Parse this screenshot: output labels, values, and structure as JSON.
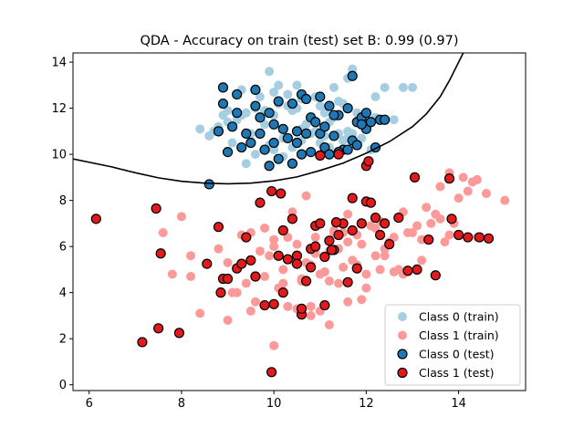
{
  "chart_data": {
    "type": "scatter",
    "title": "QDA - Accuracy on train (test) set B: 0.99 (0.97)",
    "xlabel": "",
    "ylabel": "",
    "xlim": [
      5.65,
      15.45
    ],
    "ylim": [
      -0.25,
      14.4
    ],
    "xticks": [
      6,
      8,
      10,
      12,
      14
    ],
    "yticks": [
      0,
      2,
      4,
      6,
      8,
      10,
      12,
      14
    ],
    "grid": false,
    "legend_position": "lower-right",
    "colors": {
      "class0_train": "#a6cee3",
      "class1_train": "#fb9a99",
      "class0_test": "#1f78b4",
      "class1_test": "#e31a1c",
      "edge": "#000000",
      "boundary": "#000000"
    },
    "decision_boundary": {
      "x": [
        5.65,
        6.5,
        7.0,
        7.5,
        8.0,
        8.5,
        9.0,
        9.5,
        10.0,
        10.5,
        11.0,
        11.5,
        12.0,
        12.5,
        13.0,
        13.3,
        13.6,
        13.8,
        14.0,
        14.1
      ],
      "y": [
        9.8,
        9.45,
        9.2,
        8.98,
        8.83,
        8.75,
        8.72,
        8.75,
        8.85,
        9.02,
        9.3,
        9.62,
        10.05,
        10.55,
        11.2,
        11.75,
        12.5,
        13.2,
        14.0,
        14.4
      ]
    },
    "series": [
      {
        "name": "Class 0 (train)",
        "style": "train",
        "x": [
          9.2,
          9.4,
          9.6,
          9.8,
          10.0,
          10.1,
          10.2,
          10.4,
          10.6,
          10.8,
          11.0,
          11.2,
          11.4,
          11.6,
          11.8,
          12.0,
          12.2,
          9.0,
          9.3,
          9.7,
          10.3,
          10.5,
          10.7,
          10.9,
          11.1,
          11.3,
          11.5,
          11.7,
          11.9,
          8.6,
          8.8,
          9.1,
          9.5,
          9.9,
          10.0,
          10.2,
          10.4,
          10.6,
          10.8,
          11.0,
          11.2,
          11.4,
          11.6,
          11.8,
          12.1,
          12.4,
          12.8,
          13.0,
          9.4,
          9.6,
          10.1,
          10.5,
          10.9,
          11.3,
          11.7,
          9.9,
          11.6,
          9.3,
          8.7,
          10.2,
          11.0,
          11.4,
          10.8,
          10.0,
          9.0,
          12.6,
          11.5,
          10.6,
          9.8,
          11.9,
          10.3,
          8.4,
          8.9,
          12.2,
          11.1
        ],
        "y": [
          11.5,
          11.8,
          12.0,
          11.3,
          11.7,
          12.2,
          11.1,
          11.9,
          12.4,
          11.6,
          12.1,
          11.4,
          12.3,
          11.0,
          11.8,
          11.2,
          12.5,
          11.9,
          12.8,
          12.5,
          12.6,
          12.0,
          11.3,
          11.0,
          10.8,
          11.6,
          12.2,
          10.9,
          11.4,
          10.8,
          11.2,
          10.5,
          10.9,
          10.4,
          10.2,
          10.7,
          10.3,
          10.6,
          10.1,
          10.5,
          10.3,
          10.0,
          10.7,
          10.4,
          10.2,
          12.9,
          12.9,
          12.9,
          9.6,
          10.0,
          13.0,
          13.0,
          12.5,
          12.9,
          13.7,
          13.6,
          13.3,
          11.7,
          11.0,
          9.9,
          9.9,
          10.9,
          10.9,
          12.7,
          11.4,
          11.5,
          10.6,
          11.1,
          11.9,
          10.7,
          12.1,
          11.1,
          11.7,
          11.6,
          11.8
        ]
      },
      {
        "name": "Class 1 (train)",
        "style": "train",
        "x": [
          7.6,
          8.2,
          8.4,
          9.0,
          9.2,
          9.6,
          9.8,
          10.0,
          10.2,
          10.4,
          10.6,
          10.8,
          11.0,
          11.2,
          11.4,
          11.6,
          11.8,
          12.0,
          12.2,
          12.4,
          12.6,
          12.8,
          13.0,
          13.2,
          13.4,
          13.6,
          13.8,
          14.0,
          14.2,
          14.4,
          14.6,
          15.0,
          8.8,
          9.4,
          9.9,
          10.3,
          10.7,
          11.1,
          11.5,
          11.9,
          12.3,
          12.7,
          13.1,
          13.5,
          13.9,
          14.3,
          9.5,
          10.1,
          10.5,
          10.9,
          11.3,
          11.7,
          12.1,
          12.5,
          12.9,
          13.3,
          13.7,
          7.8,
          8.9,
          9.3,
          9.7,
          10.0,
          10.4,
          10.8,
          11.2,
          11.6,
          12.0,
          12.4,
          12.8,
          13.2,
          13.6,
          14.1,
          9.0,
          9.5,
          10.6,
          11.0,
          11.4,
          11.8,
          12.2,
          10.2,
          10.8,
          11.6,
          12.6,
          13.8,
          9.8,
          10.5,
          11.3,
          12.9,
          8.2,
          9.1,
          10.9,
          11.5,
          12.3,
          14.4,
          10.3,
          11.2,
          11.9,
          10.0,
          10.7,
          8.0
        ],
        "y": [
          6.6,
          5.6,
          3.1,
          2.8,
          4.0,
          3.6,
          4.7,
          6.0,
          5.0,
          5.4,
          4.6,
          3.4,
          3.2,
          5.8,
          4.4,
          6.2,
          5.2,
          4.8,
          6.8,
          5.6,
          6.4,
          4.8,
          6.6,
          5.4,
          7.0,
          8.6,
          9.2,
          8.1,
          8.4,
          8.9,
          8.3,
          8.0,
          5.9,
          4.4,
          5.6,
          6.4,
          5.3,
          4.9,
          6.6,
          6.1,
          7.1,
          5.0,
          6.9,
          7.4,
          7.0,
          8.8,
          3.2,
          4.2,
          6.1,
          5.7,
          6.7,
          5.4,
          6.9,
          6.2,
          4.9,
          7.7,
          6.2,
          4.8,
          4.6,
          6.5,
          5.8,
          6.3,
          7.5,
          3.0,
          4.5,
          7.4,
          4.2,
          5.9,
          7.5,
          6.3,
          7.2,
          9.0,
          5.3,
          6.6,
          4.5,
          4.8,
          5.9,
          6.5,
          5.6,
          4.4,
          5.2,
          3.6,
          4.9,
          6.5,
          6.8,
          3.3,
          6.6,
          6.6,
          4.7,
          4.0,
          6.4,
          5.1,
          5.0,
          6.4,
          3.4,
          2.6,
          3.7,
          1.7,
          8.2,
          7.3
        ]
      },
      {
        "name": "Class 0 (test)",
        "style": "test",
        "x": [
          8.9,
          9.2,
          9.6,
          9.9,
          10.1,
          10.4,
          10.6,
          10.8,
          11.0,
          11.2,
          11.4,
          11.6,
          11.8,
          12.0,
          12.3,
          8.8,
          9.1,
          9.4,
          9.7,
          10.0,
          10.3,
          10.5,
          10.7,
          10.9,
          11.1,
          11.3,
          11.5,
          11.7,
          11.9,
          12.2,
          9.0,
          9.3,
          9.5,
          9.8,
          10.2,
          10.6,
          11.0,
          11.4,
          11.8,
          12.4,
          8.6,
          9.9,
          10.1,
          10.4,
          10.8,
          11.2,
          11.6,
          12.0,
          11.7,
          8.9,
          9.2,
          9.6,
          10.0,
          10.7,
          11.3,
          9.7,
          10.5,
          11.1,
          11.9,
          12.1
        ],
        "y": [
          12.9,
          12.6,
          12.8,
          11.8,
          12.3,
          12.2,
          12.6,
          11.6,
          12.5,
          12.1,
          11.7,
          12.0,
          11.4,
          11.1,
          11.5,
          11.0,
          11.2,
          10.9,
          11.6,
          11.3,
          10.7,
          10.5,
          10.9,
          11.4,
          10.3,
          10.8,
          10.2,
          10.6,
          11.6,
          10.3,
          10.1,
          10.3,
          10.5,
          10.2,
          11.1,
          10.0,
          10.9,
          10.1,
          10.4,
          11.5,
          8.7,
          9.5,
          9.8,
          9.6,
          10.1,
          10.0,
          10.2,
          11.8,
          13.4,
          12.2,
          11.8,
          12.1,
          10.5,
          12.4,
          11.7,
          10.9,
          11.0,
          11.2,
          11.3,
          11.4
        ]
      },
      {
        "name": "Class 1 (test)",
        "style": "test",
        "x": [
          6.15,
          7.15,
          7.45,
          7.5,
          7.55,
          7.95,
          8.55,
          8.8,
          8.85,
          8.9,
          9.0,
          9.2,
          9.4,
          9.5,
          9.6,
          9.8,
          9.95,
          10.0,
          10.1,
          10.2,
          10.3,
          10.4,
          10.5,
          10.6,
          10.7,
          10.8,
          10.9,
          11.0,
          11.1,
          11.2,
          11.3,
          11.4,
          11.5,
          11.6,
          11.7,
          11.8,
          11.9,
          12.0,
          12.1,
          12.2,
          12.3,
          12.4,
          12.5,
          12.7,
          12.9,
          13.05,
          13.1,
          13.35,
          13.5,
          13.8,
          13.85,
          14.0,
          14.2,
          14.45,
          14.65,
          9.3,
          9.7,
          10.2,
          10.5,
          10.8,
          11.1,
          11.4,
          11.7,
          12.0,
          9.95,
          10.15,
          11.0,
          11.35,
          12.05,
          11.25,
          10.6,
          10.9
        ],
        "y": [
          7.2,
          1.85,
          7.65,
          2.45,
          5.7,
          2.25,
          5.25,
          6.85,
          4.0,
          4.6,
          4.6,
          5.05,
          6.4,
          5.4,
          4.7,
          3.45,
          0.55,
          3.5,
          5.6,
          6.7,
          5.45,
          7.2,
          5.6,
          3.05,
          4.5,
          5.1,
          6.9,
          7.0,
          5.55,
          6.25,
          5.85,
          6.5,
          7.0,
          4.45,
          6.7,
          5.05,
          7.0,
          7.95,
          7.9,
          7.25,
          6.5,
          7.0,
          6.1,
          7.25,
          4.95,
          9.0,
          5.0,
          6.3,
          4.75,
          8.95,
          7.2,
          6.5,
          6.4,
          6.4,
          6.35,
          5.25,
          7.9,
          4.0,
          5.25,
          5.9,
          3.45,
          10.0,
          8.1,
          9.5,
          8.4,
          8.3,
          9.95,
          7.05,
          9.7,
          5.85,
          3.3,
          6.0
        ]
      }
    ]
  }
}
